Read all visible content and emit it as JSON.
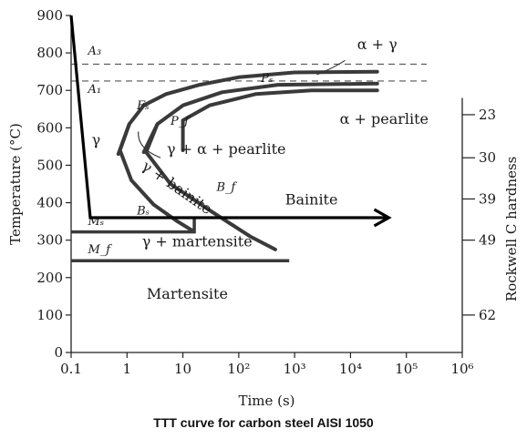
{
  "caption": "TTT curve for carbon steel AISI 1050",
  "chart_data": {
    "type": "line",
    "title": "",
    "xlabel": "Time (s)",
    "ylabel": "Temperature (°C)",
    "ylabel_right": "Rockwell C hardness",
    "x_scale": "log",
    "xlim": [
      0.1,
      1000000
    ],
    "ylim": [
      0,
      900
    ],
    "x_ticks": [
      "0.1",
      "1",
      "10",
      "10²",
      "10³",
      "10⁴",
      "10⁵",
      "10⁶"
    ],
    "y_ticks": [
      "0",
      "100",
      "200",
      "300",
      "400",
      "500",
      "600",
      "700",
      "800",
      "900"
    ],
    "hardness_ticks": [
      {
        "label": "23",
        "temp": 635
      },
      {
        "label": "30",
        "temp": 520
      },
      {
        "label": "39",
        "temp": 410
      },
      {
        "label": "49",
        "temp": 300
      },
      {
        "label": "62",
        "temp": 100
      }
    ],
    "reference_lines": [
      {
        "label": "A₃",
        "temp": 770
      },
      {
        "label": "A₁",
        "temp": 725
      }
    ],
    "curves": [
      {
        "id": "pearlite-start",
        "label": "Pₛ",
        "points": [
          [
            0.7,
            530
          ],
          [
            1.1,
            610
          ],
          [
            2,
            660
          ],
          [
            5,
            690
          ],
          [
            20,
            715
          ],
          [
            100,
            735
          ],
          [
            1000,
            748
          ],
          [
            30000,
            750
          ]
        ]
      },
      {
        "id": "pearlite-finish",
        "label": "P_f",
        "points": [
          [
            2,
            535
          ],
          [
            3.5,
            610
          ],
          [
            10,
            660
          ],
          [
            50,
            695
          ],
          [
            500,
            715
          ],
          [
            30000,
            718
          ]
        ]
      },
      {
        "id": "upper-finish",
        "points": [
          [
            10,
            540
          ],
          [
            10,
            620
          ],
          [
            30,
            660
          ],
          [
            200,
            690
          ],
          [
            2000,
            700
          ],
          [
            30000,
            700
          ]
        ]
      },
      {
        "id": "bainite-start",
        "label": "Bₛ",
        "points": [
          [
            1.1,
            610
          ],
          [
            0.75,
            540
          ],
          [
            1.2,
            460
          ],
          [
            3,
            395
          ],
          [
            8,
            350
          ],
          [
            15,
            325
          ]
        ]
      },
      {
        "id": "bainite-finish",
        "label": "B_f",
        "points": [
          [
            3.5,
            610
          ],
          [
            2.2,
            535
          ],
          [
            6,
            450
          ],
          [
            30,
            380
          ],
          [
            160,
            310
          ],
          [
            450,
            275
          ]
        ]
      }
    ],
    "ms_line": {
      "label": "Mₛ",
      "temp": 322,
      "x_range": [
        0.1,
        16
      ]
    },
    "mf_line": {
      "label": "M_f",
      "temp": 245,
      "x_range": [
        0.1,
        800
      ]
    },
    "cooling_path": {
      "points": [
        [
          0.1,
          900
        ],
        [
          0.22,
          360
        ],
        [
          45000,
          360
        ]
      ]
    },
    "region_labels": [
      {
        "text": "α + γ",
        "x": 30000,
        "y": 810
      },
      {
        "text": "α + pearlite",
        "x": 40000,
        "y": 610
      },
      {
        "text": "γ + α + pearlite",
        "x": 60,
        "y": 530
      },
      {
        "text": "γ + bainite",
        "x": 7,
        "y": 430
      },
      {
        "text": "γ",
        "x": 0.28,
        "y": 555
      },
      {
        "text": "Bainite",
        "x": 2000,
        "y": 395
      },
      {
        "text": "γ + martensite",
        "x": 18,
        "y": 283
      },
      {
        "text": "Martensite",
        "x": 12,
        "y": 143
      }
    ],
    "point_labels": [
      {
        "text": "A₃",
        "x": 0.2,
        "y": 795
      },
      {
        "text": "A₁",
        "x": 0.2,
        "y": 693
      },
      {
        "text": "Fₛ",
        "x": 1.5,
        "y": 650
      },
      {
        "text": "Pₛ",
        "x": 250,
        "y": 722
      },
      {
        "text": "P_f",
        "x": 6,
        "y": 608
      },
      {
        "text": "B_f",
        "x": 40,
        "y": 432
      },
      {
        "text": "Bₛ",
        "x": 1.5,
        "y": 368
      },
      {
        "text": "Mₛ",
        "x": 0.2,
        "y": 340
      },
      {
        "text": "M_f",
        "x": 0.2,
        "y": 265
      }
    ]
  }
}
